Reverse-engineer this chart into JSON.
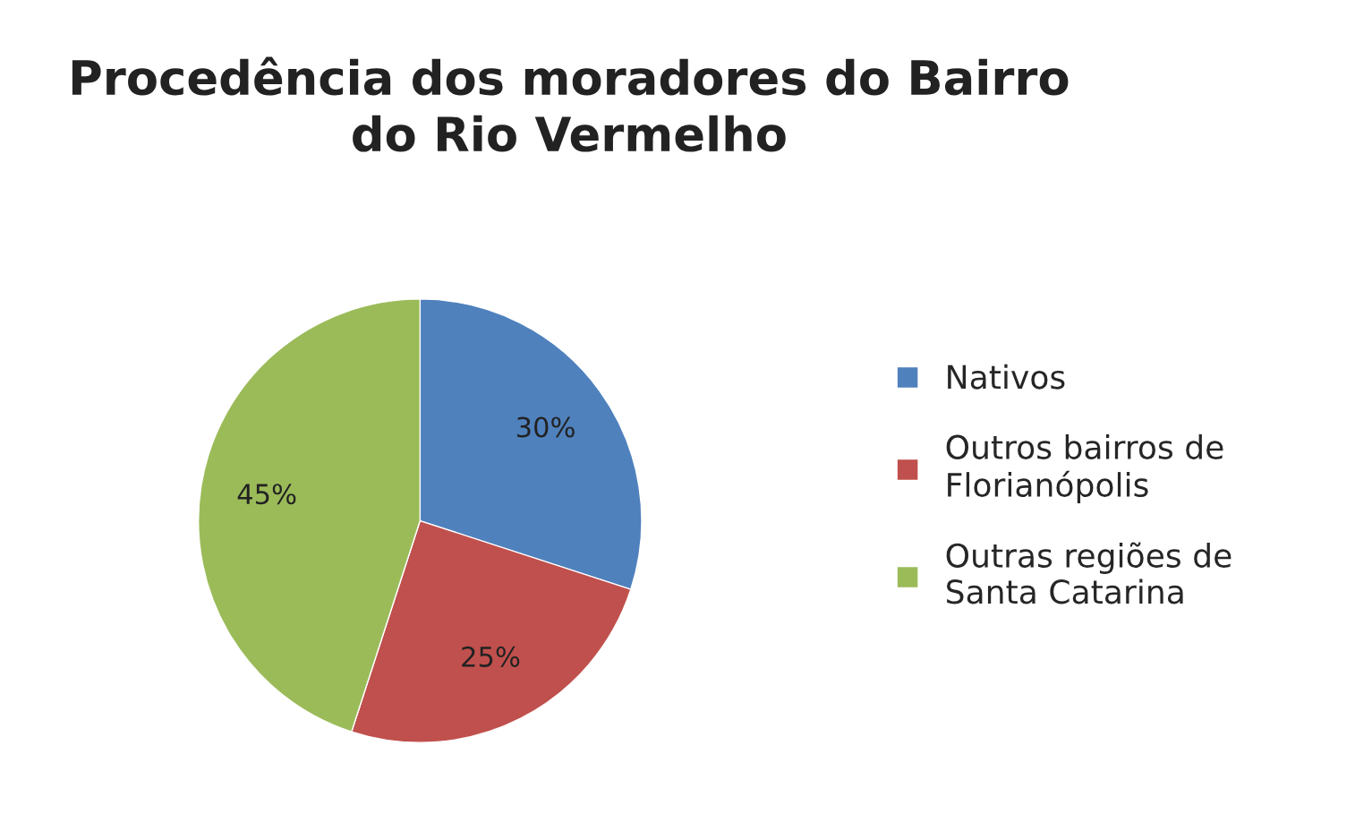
{
  "chart_data": {
    "type": "pie",
    "title": "Procedência dos moradores do Bairro\ndo Rio Vermelho",
    "categories": [
      "Nativos",
      "Outros bairros de\nFlorianópolis",
      "Outras regiões de\nSanta Catarina"
    ],
    "values": [
      30,
      25,
      45
    ],
    "colors": [
      "#4f81bd",
      "#c0504d",
      "#9bbb59"
    ],
    "value_labels": [
      "30%",
      "25%",
      "45%"
    ],
    "legend": "right"
  }
}
